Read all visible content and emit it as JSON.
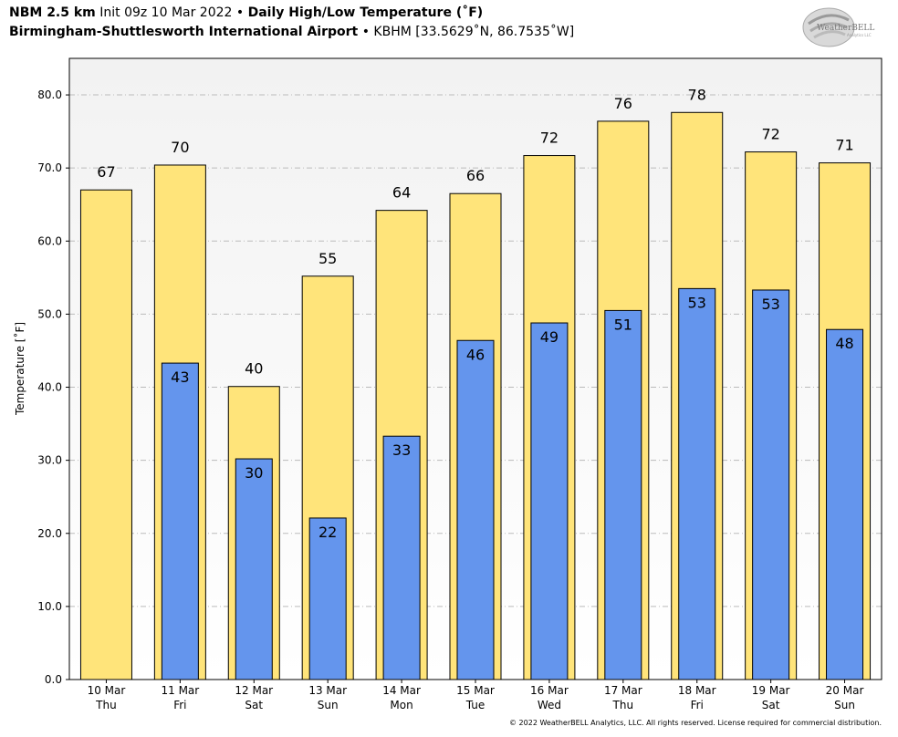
{
  "header": {
    "model": "NBM 2.5 km",
    "init": "Init 09z 10 Mar 2022",
    "separator": "•",
    "product": "Daily High/Low Temperature (˚F)",
    "station": "Birmingham-Shuttlesworth International Airport",
    "station_code": "KBHM [33.5629˚N, 86.7535˚W]"
  },
  "logo": {
    "text": "WeatherBELL",
    "subtext": "Analytics LLC"
  },
  "copyright": "© 2022 WeatherBELL Analytics, LLC. All rights reserved. License required for commercial distribution.",
  "colors": {
    "high": "#FFE47A",
    "low": "#6495ED",
    "plot_bg_top": "#F2F2F2",
    "plot_bg_bottom": "#FFFFFF",
    "grid": "#BBBBBB"
  },
  "chart_data": {
    "type": "bar",
    "ylabel": "Temperature [˚F]",
    "ylim": [
      0,
      85
    ],
    "yticks": [
      "0.0",
      "10.0",
      "20.0",
      "30.0",
      "40.0",
      "50.0",
      "60.0",
      "70.0",
      "80.0"
    ],
    "grid": true,
    "categories": [
      {
        "date": "10 Mar",
        "day": "Thu"
      },
      {
        "date": "11 Mar",
        "day": "Fri"
      },
      {
        "date": "12 Mar",
        "day": "Sat"
      },
      {
        "date": "13 Mar",
        "day": "Sun"
      },
      {
        "date": "14 Mar",
        "day": "Mon"
      },
      {
        "date": "15 Mar",
        "day": "Tue"
      },
      {
        "date": "16 Mar",
        "day": "Wed"
      },
      {
        "date": "17 Mar",
        "day": "Thu"
      },
      {
        "date": "18 Mar",
        "day": "Fri"
      },
      {
        "date": "19 Mar",
        "day": "Sat"
      },
      {
        "date": "20 Mar",
        "day": "Sun"
      }
    ],
    "series": [
      {
        "values": [
          67,
          70.4,
          40.1,
          55.2,
          64.2,
          66.5,
          71.7,
          76.4,
          77.6,
          72.2,
          70.7
        ],
        "labels": [
          "67",
          "70",
          "40",
          "55",
          "64",
          "66",
          "72",
          "76",
          "78",
          "72",
          "71"
        ]
      },
      {
        "values": [
          null,
          43.3,
          30.2,
          22.1,
          33.3,
          46.4,
          48.8,
          50.5,
          53.5,
          53.3,
          47.9
        ],
        "labels": [
          "",
          "43",
          "30",
          "22",
          "33",
          "46",
          "49",
          "51",
          "53",
          "53",
          "48"
        ]
      }
    ]
  }
}
